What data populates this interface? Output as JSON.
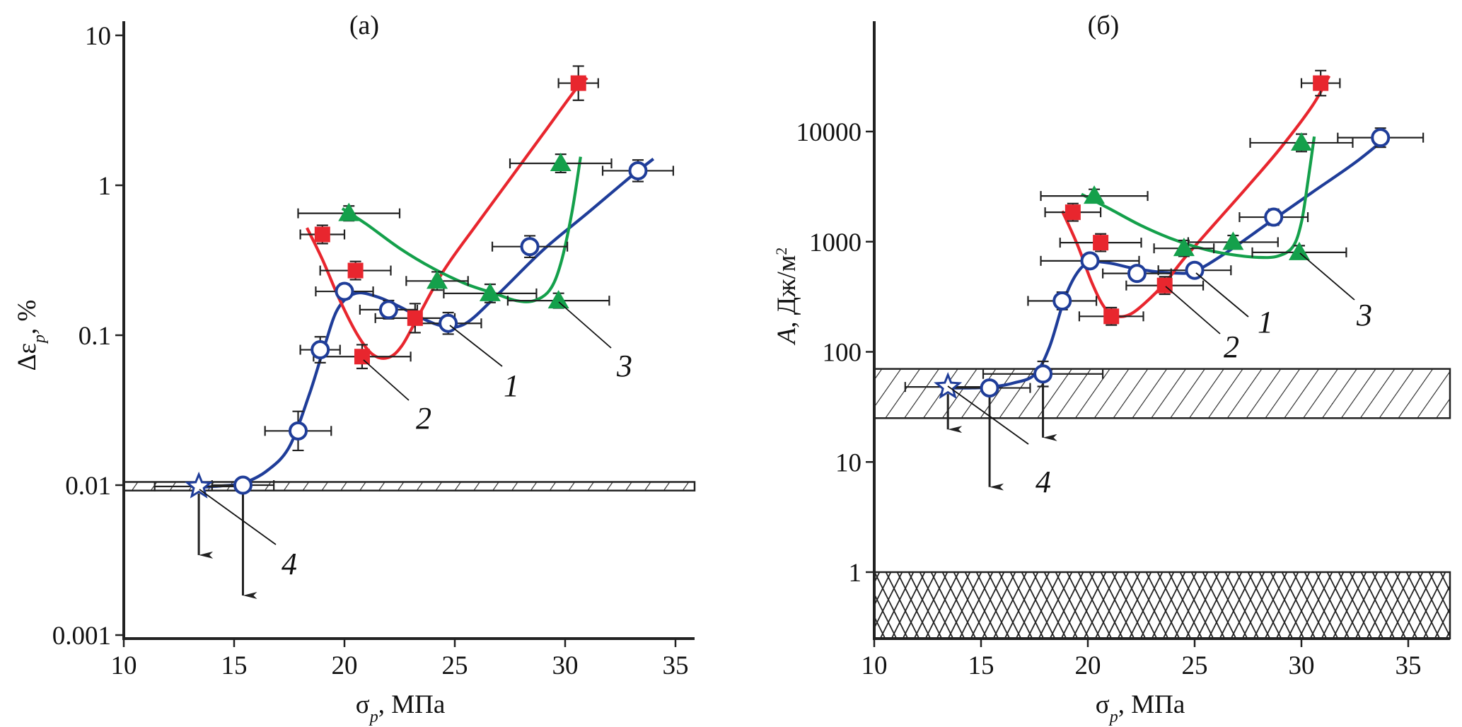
{
  "chart_data": [
    {
      "type": "scatter",
      "panel": "a",
      "title": "(a)",
      "xlabel": "σp, МПа",
      "ylabel": "Δεp, %",
      "xscale": "linear",
      "yscale": "log",
      "xlim": [
        10,
        36
      ],
      "ylim": [
        0.001,
        12
      ],
      "xticks": [
        "10",
        "15",
        "20",
        "25",
        "30",
        "35"
      ],
      "xtick_values": [
        10,
        15,
        20,
        25,
        30,
        35
      ],
      "yticks": [
        "10",
        "1",
        "0.1",
        "0.01",
        "0.001"
      ],
      "ytick_values": [
        10,
        1,
        0.1,
        0.01,
        0.001
      ],
      "grid": false,
      "bands": [
        {
          "name": "hatched-band",
          "pattern": "diagonal",
          "ymin": 0.0092,
          "ymax": 0.0105
        }
      ],
      "series": [
        {
          "name": "1",
          "marker": "open-circle",
          "color": "#1f3d99",
          "x": [
            15.4,
            17.9,
            18.9,
            20.0,
            22.0,
            24.7,
            28.4,
            33.3
          ],
          "y": [
            0.01,
            0.023,
            0.08,
            0.196,
            0.148,
            0.12,
            0.39,
            1.25
          ],
          "xerr": [
            1.4,
            1.5,
            0.9,
            1.3,
            1.3,
            1.5,
            1.7,
            1.6
          ],
          "yerr_rel": [
            0.0,
            0.35,
            0.22,
            0.12,
            0.15,
            0.18,
            0.18,
            0.18
          ],
          "arrows_down": [
            true,
            false,
            false,
            false,
            false,
            false,
            false,
            false
          ],
          "curve_x": [
            13.6,
            14.5,
            15.4,
            16.5,
            17.5,
            18.4,
            19.1,
            19.7,
            20.5,
            21.5,
            22.5,
            23.5,
            24.5,
            25.5,
            27.0,
            29.0,
            31.0,
            33.0,
            34.0
          ],
          "curve_y": [
            0.0097,
            0.0099,
            0.0103,
            0.0125,
            0.018,
            0.04,
            0.085,
            0.15,
            0.19,
            0.18,
            0.155,
            0.13,
            0.115,
            0.12,
            0.19,
            0.37,
            0.65,
            1.15,
            1.5
          ]
        },
        {
          "name": "2",
          "marker": "filled-square",
          "color": "#e8262e",
          "x": [
            19.0,
            20.5,
            20.8,
            23.2,
            30.6
          ],
          "y": [
            0.47,
            0.27,
            0.072,
            0.13,
            4.8
          ],
          "xerr": [
            1.0,
            1.6,
            2.2,
            1.8,
            0.9
          ],
          "yerr_rel": [
            0.15,
            0.15,
            0.2,
            0.25,
            0.3
          ],
          "curve_x": [
            18.3,
            19.0,
            19.8,
            20.6,
            21.3,
            22.0,
            22.6,
            23.3,
            24.5,
            26.0,
            27.5,
            29.0,
            30.5,
            31.0
          ],
          "curve_y": [
            0.52,
            0.32,
            0.17,
            0.1,
            0.074,
            0.071,
            0.085,
            0.13,
            0.27,
            0.55,
            1.1,
            2.2,
            4.4,
            5.2
          ]
        },
        {
          "name": "3",
          "marker": "filled-triangle",
          "color": "#14a04b",
          "x": [
            20.2,
            24.2,
            26.6,
            29.7,
            29.8
          ],
          "y": [
            0.65,
            0.23,
            0.19,
            0.17,
            1.4
          ],
          "xerr": [
            2.3,
            1.4,
            2.1,
            2.3,
            2.3
          ],
          "yerr_rel": [
            0.12,
            0.15,
            0.15,
            0.12,
            0.15
          ],
          "curve_x": [
            19.9,
            21.0,
            22.5,
            24.0,
            25.5,
            26.8,
            27.8,
            28.6,
            29.3,
            29.8,
            30.3,
            30.7
          ],
          "curve_y": [
            0.7,
            0.55,
            0.38,
            0.28,
            0.22,
            0.19,
            0.17,
            0.17,
            0.2,
            0.3,
            0.65,
            1.55
          ]
        },
        {
          "name": "4",
          "marker": "open-star",
          "color": "#1f3d99",
          "x": [
            13.4
          ],
          "y": [
            0.0098
          ],
          "xerr": [
            2.0
          ],
          "yerr_rel": [
            0.0
          ],
          "arrows_down": [
            true
          ]
        }
      ],
      "annotations": [
        "1",
        "2",
        "3",
        "4"
      ]
    },
    {
      "type": "scatter",
      "panel": "б",
      "title": "(б)",
      "xlabel": "σp, МПа",
      "ylabel": "A, Дж/м²",
      "xscale": "linear",
      "yscale": "log",
      "xlim": [
        10,
        36
      ],
      "ylim": [
        0.25,
        80000
      ],
      "xticks": [
        "10",
        "15",
        "20",
        "25",
        "30",
        "35"
      ],
      "xtick_values": [
        10,
        15,
        20,
        25,
        30,
        35
      ],
      "yticks": [
        "10000",
        "1000",
        "100",
        "10",
        "1"
      ],
      "ytick_values": [
        10000,
        1000,
        100,
        10,
        1
      ],
      "grid": false,
      "bands": [
        {
          "name": "hatched-band",
          "pattern": "diagonal",
          "ymin": 25,
          "ymax": 70
        },
        {
          "name": "crosshatched-band",
          "pattern": "cross",
          "ymin": 0.25,
          "ymax": 1
        }
      ],
      "series": [
        {
          "name": "1",
          "marker": "open-circle",
          "color": "#1f3d99",
          "x": [
            15.4,
            17.9,
            18.8,
            20.1,
            22.3,
            25.0,
            28.7,
            33.7
          ],
          "y": [
            47,
            63,
            290,
            670,
            515,
            550,
            1670,
            8800
          ],
          "xerr": [
            1.9,
            2.8,
            1.6,
            2.3,
            1.6,
            1.7,
            1.6,
            2.0
          ],
          "yerr_rel": [
            0.0,
            0.3,
            0.2,
            0.15,
            0.15,
            0.15,
            0.18,
            0.22
          ],
          "arrows_down": [
            true,
            true,
            false,
            false,
            false,
            false,
            false,
            false
          ],
          "curve_x": [
            13.7,
            14.6,
            15.5,
            16.5,
            17.5,
            18.2,
            18.9,
            19.5,
            20.1,
            21.0,
            22.0,
            23.0,
            24.0,
            25.0,
            26.5,
            28.5,
            30.5,
            32.5,
            34.0
          ],
          "curve_y": [
            47,
            47,
            48,
            52,
            62,
            110,
            300,
            520,
            650,
            640,
            580,
            540,
            520,
            540,
            800,
            1500,
            2800,
            5200,
            8900
          ]
        },
        {
          "name": "2",
          "marker": "filled-square",
          "color": "#e8262e",
          "x": [
            19.3,
            20.6,
            21.1,
            23.6,
            30.9
          ],
          "y": [
            1850,
            980,
            210,
            400,
            27500
          ],
          "xerr": [
            1.3,
            1.9,
            1.5,
            1.8,
            0.9
          ],
          "yerr_rel": [
            0.2,
            0.2,
            0.2,
            0.2,
            0.3
          ],
          "curve_x": [
            18.8,
            19.5,
            20.2,
            20.8,
            21.4,
            22.0,
            22.7,
            23.6,
            24.5,
            26.0,
            27.5,
            29.0,
            30.5,
            31.3
          ],
          "curve_y": [
            1900,
            950,
            420,
            250,
            210,
            220,
            280,
            420,
            700,
            1500,
            3200,
            7000,
            17000,
            32000
          ]
        },
        {
          "name": "3",
          "marker": "filled-triangle",
          "color": "#14a04b",
          "x": [
            20.3,
            24.5,
            26.8,
            29.9,
            30.0
          ],
          "y": [
            2600,
            870,
            990,
            800,
            7900
          ],
          "xerr": [
            2.5,
            1.4,
            2.1,
            2.2,
            2.4
          ],
          "yerr_rel": [
            0.15,
            0.18,
            0.15,
            0.15,
            0.2
          ],
          "curve_x": [
            19.7,
            21.0,
            22.5,
            24.0,
            25.5,
            26.8,
            28.0,
            28.9,
            29.6,
            30.0,
            30.3,
            30.6
          ],
          "curve_y": [
            2700,
            2000,
            1400,
            1050,
            850,
            760,
            720,
            740,
            900,
            1500,
            3500,
            9000
          ]
        },
        {
          "name": "4",
          "marker": "open-star",
          "color": "#1f3d99",
          "x": [
            13.45
          ],
          "y": [
            48
          ],
          "xerr": [
            2.0
          ],
          "yerr_rel": [
            0.0
          ],
          "arrows_down": [
            true
          ]
        }
      ],
      "annotations": [
        "1",
        "2",
        "3",
        "4"
      ]
    }
  ]
}
